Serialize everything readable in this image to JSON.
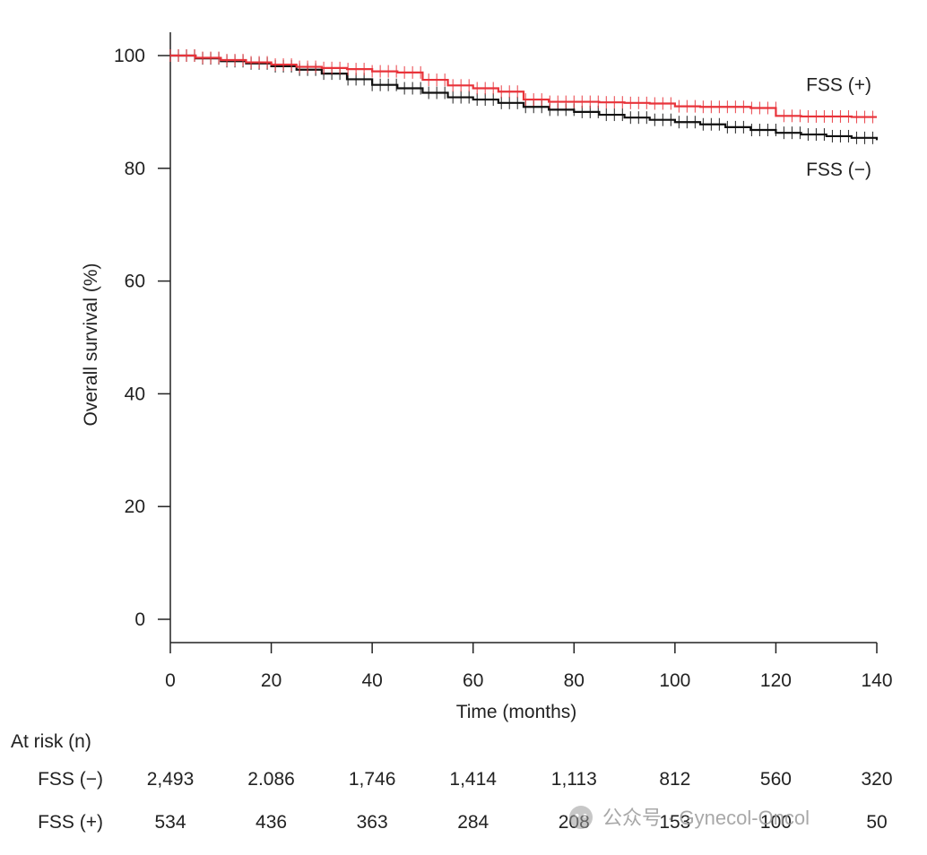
{
  "chart_data": {
    "type": "line",
    "xlabel": "Time (months)",
    "ylabel": "Overall survival (%)",
    "xlim": [
      0,
      140
    ],
    "ylim": [
      0,
      100
    ],
    "x_ticks": [
      "0",
      "20",
      "40",
      "60",
      "80",
      "100",
      "120",
      "140"
    ],
    "y_ticks": [
      "0",
      "20",
      "40",
      "60",
      "80",
      "100"
    ],
    "grid": false,
    "series": [
      {
        "name": "FSS (−)",
        "color": "#111111",
        "x": [
          0,
          5,
          10,
          15,
          20,
          25,
          30,
          35,
          40,
          45,
          50,
          55,
          60,
          65,
          70,
          75,
          80,
          85,
          90,
          95,
          100,
          105,
          110,
          115,
          120,
          125,
          130,
          135,
          140
        ],
        "y": [
          100,
          99.5,
          99,
          98.6,
          98.1,
          97.5,
          96.8,
          95.8,
          94.8,
          94.2,
          93.4,
          92.6,
          92.2,
          91.6,
          90.9,
          90.4,
          90.0,
          89.5,
          89.0,
          88.6,
          88.2,
          87.8,
          87.3,
          86.8,
          86.3,
          86.0,
          85.7,
          85.4,
          85.0
        ]
      },
      {
        "name": "FSS (+)",
        "color": "#e8333a",
        "x": [
          0,
          5,
          10,
          15,
          20,
          25,
          30,
          35,
          40,
          45,
          50,
          55,
          60,
          65,
          70,
          75,
          80,
          85,
          90,
          95,
          100,
          105,
          110,
          115,
          120,
          125,
          130,
          135,
          140
        ],
        "y": [
          100,
          99.6,
          99.2,
          98.8,
          98.4,
          98.0,
          97.8,
          97.6,
          97.2,
          97.0,
          95.7,
          94.7,
          94.2,
          93.6,
          92.2,
          91.8,
          91.8,
          91.7,
          91.6,
          91.5,
          91.0,
          90.9,
          90.9,
          90.7,
          89.3,
          89.2,
          89.2,
          89.1,
          89.1
        ]
      }
    ],
    "series_labels": [
      {
        "text": "FSS (+)",
        "x": 140,
        "y": 95
      },
      {
        "text": "FSS (−)",
        "x": 140,
        "y": 80
      }
    ],
    "at_risk": {
      "title": "At risk (n)",
      "times": [
        0,
        20,
        40,
        60,
        80,
        100,
        120,
        140
      ],
      "rows": [
        {
          "label": "FSS (−)",
          "values": [
            "2,493",
            "2.086",
            "1,746",
            "1,414",
            "1,113",
            "812",
            "560",
            "320"
          ]
        },
        {
          "label": "FSS (+)",
          "values": [
            "534",
            "436",
            "363",
            "284",
            "208",
            "153",
            "100",
            "50"
          ]
        }
      ]
    }
  },
  "watermark": {
    "text": "公众号 · Gynecol-Oncol",
    "icon": "wechat-icon"
  }
}
